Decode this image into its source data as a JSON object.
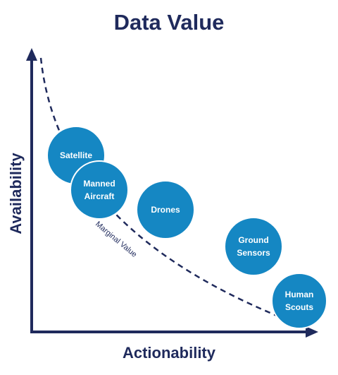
{
  "title": "Data Value",
  "axes": {
    "x_label": "Actionability",
    "y_label": "Availability"
  },
  "curve": {
    "label": "Marginal Value",
    "style": "dashed"
  },
  "colors": {
    "title": "#1f2a5c",
    "axis": "#1f2a5c",
    "bubble_fill": "#1587c3",
    "bubble_stroke": "#ffffff",
    "bubble_text": "#ffffff"
  },
  "bubbles": [
    {
      "id": "satellite",
      "lines": [
        "Satellite"
      ]
    },
    {
      "id": "manned-aircraft",
      "lines": [
        "Manned",
        "Aircraft"
      ]
    },
    {
      "id": "drones",
      "lines": [
        "Drones"
      ]
    },
    {
      "id": "ground-sensors",
      "lines": [
        "Ground",
        "Sensors"
      ]
    },
    {
      "id": "human-scouts",
      "lines": [
        "Human",
        "Scouts"
      ]
    }
  ]
}
